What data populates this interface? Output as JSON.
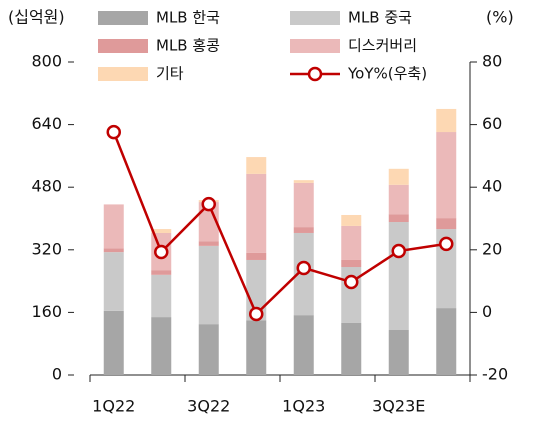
{
  "chart_data": {
    "type": "bar",
    "stacked": true,
    "y_label": "(십억원)",
    "y2_label": "(%)",
    "categories": [
      "1Q22",
      null,
      "3Q22",
      null,
      "1Q23",
      null,
      "3Q23E",
      null
    ],
    "ylim": [
      0,
      800
    ],
    "yticks": [
      0,
      160,
      320,
      480,
      640,
      800
    ],
    "y2lim": [
      -20,
      80
    ],
    "y2ticks": [
      -20,
      0,
      20,
      40,
      60,
      80
    ],
    "series": [
      {
        "name": "MLB 한국",
        "color": "#a6a6a6",
        "values": [
          164,
          148,
          130,
          140,
          153,
          133,
          115,
          171
        ]
      },
      {
        "name": "MLB 중국",
        "color": "#c9c9c9",
        "values": [
          150,
          108,
          200,
          154,
          210,
          143,
          276,
          202
        ]
      },
      {
        "name": "MLB 홍콩",
        "color": "#df9a9a",
        "values": [
          10,
          12,
          12,
          18,
          15,
          18,
          20,
          28
        ]
      },
      {
        "name": "디스커버리",
        "color": "#ebb9b9",
        "values": [
          112,
          95,
          100,
          202,
          113,
          87,
          75,
          220
        ]
      },
      {
        "name": "기타",
        "color": "#fdd8b3",
        "values": [
          0,
          10,
          5,
          43,
          7,
          28,
          41,
          59
        ]
      },
      {
        "name": "YoY%(우축)",
        "color": "#c00000",
        "type": "line",
        "axis": "y2",
        "values": [
          57.6,
          19.3,
          34.6,
          -0.5,
          14.2,
          9.7,
          19.6,
          21.9
        ]
      }
    ]
  }
}
